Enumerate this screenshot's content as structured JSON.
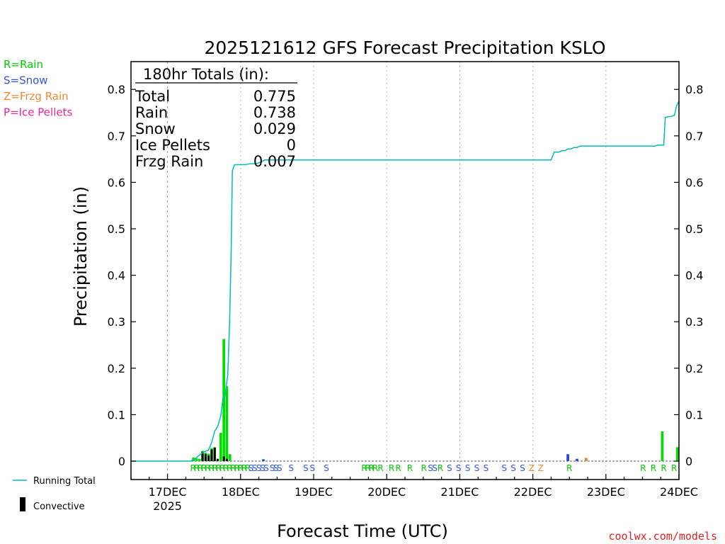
{
  "chart_data": {
    "type": "bar",
    "title": "2025121612 GFS Forecast Precipitation KSLO",
    "xlabel": "Forecast Time (UTC)",
    "ylabel": "Precipitation (in)",
    "ylim": [
      0,
      0.86
    ],
    "xlim_hours": [
      -12,
      168
    ],
    "y_ticks": [
      0,
      0.1,
      0.2,
      0.3,
      0.4,
      0.5,
      0.6,
      0.7,
      0.8
    ],
    "y_tick_labels": [
      "0",
      "0.1",
      "0.2",
      "0.3",
      "0.4",
      "0.5",
      "0.6",
      "0.7",
      "0.8"
    ],
    "x_ticks": [
      {
        "hour": 0,
        "label": "17DEC",
        "sublabel": "2025"
      },
      {
        "hour": 24,
        "label": "18DEC"
      },
      {
        "hour": 48,
        "label": "19DEC"
      },
      {
        "hour": 72,
        "label": "20DEC"
      },
      {
        "hour": 96,
        "label": "21DEC"
      },
      {
        "hour": 120,
        "label": "22DEC"
      },
      {
        "hour": 144,
        "label": "23DEC"
      },
      {
        "hour": 168,
        "label": "24DEC"
      }
    ],
    "dotted_gridlines_hours": [
      24,
      48,
      72,
      96,
      120,
      144
    ],
    "dashed_gridlines_hours": [
      0
    ],
    "ptype_legend": [
      {
        "text": "R=Rain",
        "color": "#00cc00"
      },
      {
        "text": "S=Snow",
        "color": "#3355dd"
      },
      {
        "text": "Z=Frzg Rain",
        "color": "#ee8833"
      },
      {
        "text": "P=Ice Pellets",
        "color": "#ee2299"
      }
    ],
    "totals": {
      "header": "180hr Totals (in):",
      "rows": [
        {
          "label": "Total",
          "value": "0.775"
        },
        {
          "label": "Rain",
          "value": "0.738"
        },
        {
          "label": "Snow",
          "value": "0.029"
        },
        {
          "label": "Ice Pellets",
          "value": "0"
        },
        {
          "label": "Frzg Rain",
          "value": "0.007"
        }
      ]
    },
    "series": [
      {
        "name": "Rain",
        "color": "#00dd00",
        "bars": [
          {
            "hour": 8.5,
            "value": 0.008
          },
          {
            "hour": 9.5,
            "value": 0.006
          },
          {
            "hour": 10.5,
            "value": 0.005
          },
          {
            "hour": 11.5,
            "value": 0.022
          },
          {
            "hour": 12.5,
            "value": 0.018
          },
          {
            "hour": 13.5,
            "value": 0.016
          },
          {
            "hour": 14.5,
            "value": 0.028
          },
          {
            "hour": 15.5,
            "value": 0.03
          },
          {
            "hour": 17.5,
            "value": 0.061
          },
          {
            "hour": 18.5,
            "value": 0.263
          },
          {
            "hour": 19.5,
            "value": 0.161
          },
          {
            "hour": 20.5,
            "value": 0.015
          },
          {
            "hour": 162.5,
            "value": 0.064
          },
          {
            "hour": 167.5,
            "value": 0.03
          }
        ]
      },
      {
        "name": "Snow",
        "color": "#2244dd",
        "bars": [
          {
            "hour": 31.5,
            "value": 0.004
          },
          {
            "hour": 131.5,
            "value": 0.015
          },
          {
            "hour": 134.5,
            "value": 0.005
          }
        ]
      },
      {
        "name": "Frzg Rain",
        "color": "#dd8833",
        "bars": [
          {
            "hour": 137.5,
            "value": 0.007
          }
        ]
      },
      {
        "name": "Convective",
        "color": "#000000",
        "bars": [
          {
            "hour": 11.5,
            "value": 0.02
          },
          {
            "hour": 12.5,
            "value": 0.015
          },
          {
            "hour": 13.5,
            "value": 0.012
          },
          {
            "hour": 14.5,
            "value": 0.025
          },
          {
            "hour": 15.5,
            "value": 0.029
          },
          {
            "hour": 16.5,
            "value": 0.005
          },
          {
            "hour": 18.5,
            "value": 0.01
          },
          {
            "hour": 19.5,
            "value": 0.005
          }
        ]
      }
    ],
    "running_total": {
      "name": "Running Total",
      "color": "#00bbbb",
      "points": [
        [
          -12,
          0
        ],
        [
          7.5,
          0
        ],
        [
          9,
          0.005
        ],
        [
          10.5,
          0.013
        ],
        [
          12,
          0.02
        ],
        [
          13.5,
          0.024
        ],
        [
          14.5,
          0.04
        ],
        [
          15.5,
          0.065
        ],
        [
          16.5,
          0.075
        ],
        [
          17.5,
          0.098
        ],
        [
          18.2,
          0.135
        ],
        [
          18.8,
          0.137
        ],
        [
          19.8,
          0.185
        ],
        [
          20.4,
          0.3
        ],
        [
          20.9,
          0.45
        ],
        [
          21.3,
          0.625
        ],
        [
          22,
          0.638
        ],
        [
          24,
          0.638
        ],
        [
          25.5,
          0.638
        ],
        [
          27,
          0.64
        ],
        [
          29,
          0.64
        ],
        [
          30,
          0.642
        ],
        [
          31,
          0.645
        ],
        [
          32,
          0.648
        ],
        [
          33,
          0.648
        ],
        [
          124,
          0.648
        ],
        [
          126,
          0.648
        ],
        [
          127,
          0.665
        ],
        [
          128.5,
          0.665
        ],
        [
          129.5,
          0.668
        ],
        [
          130.5,
          0.668
        ],
        [
          131.5,
          0.672
        ],
        [
          132.5,
          0.672
        ],
        [
          133.5,
          0.675
        ],
        [
          134.5,
          0.675
        ],
        [
          135.5,
          0.678
        ],
        [
          139,
          0.678
        ],
        [
          160,
          0.678
        ],
        [
          161,
          0.68
        ],
        [
          163,
          0.68
        ],
        [
          163.5,
          0.74
        ],
        [
          165.5,
          0.742
        ],
        [
          166.5,
          0.744
        ],
        [
          167.2,
          0.765
        ],
        [
          168,
          0.775
        ]
      ]
    },
    "ptype_markers": [
      {
        "hour": 8.4,
        "letter": "R",
        "color": "#00cc00"
      },
      {
        "hour": 9.6,
        "letter": "R",
        "color": "#00cc00"
      },
      {
        "hour": 10.8,
        "letter": "R",
        "color": "#00cc00"
      },
      {
        "hour": 12,
        "letter": "R",
        "color": "#00cc00"
      },
      {
        "hour": 13.2,
        "letter": "R",
        "color": "#00cc00"
      },
      {
        "hour": 14.4,
        "letter": "R",
        "color": "#00cc00"
      },
      {
        "hour": 15.6,
        "letter": "R",
        "color": "#00cc00"
      },
      {
        "hour": 16.8,
        "letter": "R",
        "color": "#00cc00"
      },
      {
        "hour": 18,
        "letter": "R",
        "color": "#00cc00"
      },
      {
        "hour": 19.2,
        "letter": "R",
        "color": "#00cc00"
      },
      {
        "hour": 20.4,
        "letter": "R",
        "color": "#00cc00"
      },
      {
        "hour": 21.6,
        "letter": "R",
        "color": "#00cc00"
      },
      {
        "hour": 22.8,
        "letter": "R",
        "color": "#00cc00"
      },
      {
        "hour": 24,
        "letter": "R",
        "color": "#00cc00"
      },
      {
        "hour": 25.2,
        "letter": "R",
        "color": "#00cc00"
      },
      {
        "hour": 26.4,
        "letter": "R",
        "color": "#00cc00"
      },
      {
        "hour": 27.4,
        "letter": "S",
        "color": "#3355dd"
      },
      {
        "hour": 28.6,
        "letter": "S",
        "color": "#3355dd"
      },
      {
        "hour": 30,
        "letter": "S",
        "color": "#3355dd"
      },
      {
        "hour": 31.2,
        "letter": "S",
        "color": "#3355dd"
      },
      {
        "hour": 32.4,
        "letter": "S",
        "color": "#3355dd"
      },
      {
        "hour": 34.4,
        "letter": "S",
        "color": "#3355dd"
      },
      {
        "hour": 35.6,
        "letter": "S",
        "color": "#3355dd"
      },
      {
        "hour": 36.8,
        "letter": "S",
        "color": "#3355dd"
      },
      {
        "hour": 40.6,
        "letter": "S",
        "color": "#3355dd"
      },
      {
        "hour": 45.4,
        "letter": "S",
        "color": "#3355dd"
      },
      {
        "hour": 47.6,
        "letter": "S",
        "color": "#3355dd"
      },
      {
        "hour": 52.2,
        "letter": "S",
        "color": "#3355dd"
      },
      {
        "hour": 64.6,
        "letter": "R",
        "color": "#00cc00"
      },
      {
        "hour": 65.8,
        "letter": "R",
        "color": "#00cc00"
      },
      {
        "hour": 67,
        "letter": "R",
        "color": "#00cc00"
      },
      {
        "hour": 68.2,
        "letter": "R",
        "color": "#00cc00"
      },
      {
        "hour": 70,
        "letter": "R",
        "color": "#00cc00"
      },
      {
        "hour": 73.6,
        "letter": "R",
        "color": "#00cc00"
      },
      {
        "hour": 75.8,
        "letter": "R",
        "color": "#00cc00"
      },
      {
        "hour": 79.6,
        "letter": "R",
        "color": "#00cc00"
      },
      {
        "hour": 84.2,
        "letter": "R",
        "color": "#00cc00"
      },
      {
        "hour": 86.4,
        "letter": "S",
        "color": "#3355dd"
      },
      {
        "hour": 87.8,
        "letter": "S",
        "color": "#3355dd"
      },
      {
        "hour": 89.6,
        "letter": "R",
        "color": "#00cc00"
      },
      {
        "hour": 92.6,
        "letter": "S",
        "color": "#3355dd"
      },
      {
        "hour": 95.6,
        "letter": "S",
        "color": "#3355dd"
      },
      {
        "hour": 98.6,
        "letter": "S",
        "color": "#3355dd"
      },
      {
        "hour": 101.6,
        "letter": "S",
        "color": "#3355dd"
      },
      {
        "hour": 104.6,
        "letter": "S",
        "color": "#3355dd"
      },
      {
        "hour": 110.6,
        "letter": "S",
        "color": "#3355dd"
      },
      {
        "hour": 113.6,
        "letter": "S",
        "color": "#3355dd"
      },
      {
        "hour": 116.6,
        "letter": "S",
        "color": "#3355dd"
      },
      {
        "hour": 119.6,
        "letter": "Z",
        "color": "#ee8833"
      },
      {
        "hour": 122.6,
        "letter": "Z",
        "color": "#ee8833"
      },
      {
        "hour": 132,
        "letter": "R",
        "color": "#00cc00"
      },
      {
        "hour": 156.2,
        "letter": "R",
        "color": "#00cc00"
      },
      {
        "hour": 159.6,
        "letter": "R",
        "color": "#00cc00"
      },
      {
        "hour": 163,
        "letter": "R",
        "color": "#00cc00"
      },
      {
        "hour": 166.4,
        "letter": "R",
        "color": "#00cc00"
      }
    ],
    "bottom_legend": [
      {
        "text": "Running Total",
        "kind": "line",
        "color": "#00bbbb"
      },
      {
        "text": "Convective",
        "kind": "bar",
        "color": "#000000"
      }
    ],
    "credit": "coolwx.com/models",
    "credit_color": "#dd2222"
  }
}
